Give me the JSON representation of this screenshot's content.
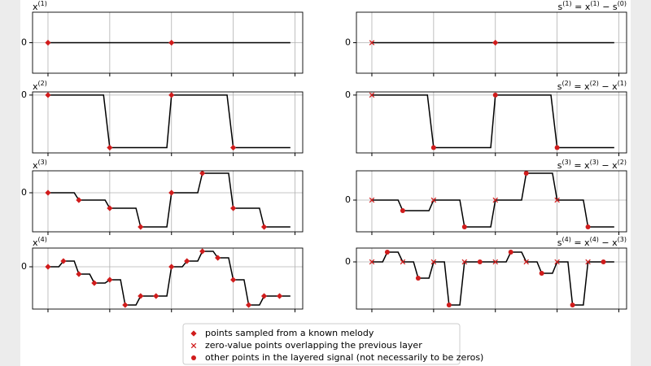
{
  "chart_data": [
    {
      "type": "line",
      "title": [
        {
          "text": "x",
          "sup": "(1)"
        }
      ],
      "xlim": [
        -1,
        16.5
      ],
      "ylim": [
        -1,
        1
      ],
      "xticks": [
        0,
        4,
        8,
        12,
        16
      ],
      "yticks": [
        0
      ],
      "grid": true,
      "series": [
        {
          "color": "#000000",
          "x": [
            0,
            15.7
          ],
          "values": [
            0,
            0
          ]
        },
        {
          "marker": "diamond",
          "color": "#d01c1c",
          "x": [
            0,
            8
          ],
          "values": [
            0,
            0
          ]
        }
      ]
    },
    {
      "type": "line",
      "title": [
        {
          "text": "s",
          "sup": "(1)"
        },
        {
          "text": " = x",
          "sup": "(1)"
        },
        {
          "text": " − s",
          "sup": "(0)"
        }
      ],
      "xlim": [
        -1,
        16.5
      ],
      "ylim": [
        -1,
        1
      ],
      "xticks": [
        0,
        4,
        8,
        12,
        16
      ],
      "yticks": [
        0
      ],
      "grid": true,
      "series": [
        {
          "color": "#000000",
          "x": [
            0,
            15.7
          ],
          "values": [
            0,
            0
          ]
        },
        {
          "marker": "x",
          "color": "#d01c1c",
          "x": [
            0
          ],
          "values": [
            0
          ]
        },
        {
          "marker": "diamond",
          "color": "#d01c1c",
          "x": [
            8
          ],
          "values": [
            0
          ]
        }
      ]
    },
    {
      "type": "line",
      "title": [
        {
          "text": "x",
          "sup": "(2)"
        }
      ],
      "xlim": [
        -1,
        16.5
      ],
      "ylim": [
        -1.1,
        0.06
      ],
      "xticks": [
        0,
        4,
        8,
        12,
        16
      ],
      "yticks": [
        0
      ],
      "grid": true,
      "series": [
        {
          "color": "#000000",
          "x": [
            0,
            3.6,
            4,
            7.7,
            8,
            11.6,
            12,
            15.7
          ],
          "values": [
            0,
            0,
            -1,
            -1,
            0,
            0,
            -1,
            -1
          ]
        },
        {
          "marker": "diamond",
          "color": "#d01c1c",
          "x": [
            0,
            4,
            8,
            12
          ],
          "values": [
            0,
            -1,
            0,
            -1
          ]
        }
      ]
    },
    {
      "type": "line",
      "title": [
        {
          "text": "s",
          "sup": "(2)"
        },
        {
          "text": " = x",
          "sup": "(2)"
        },
        {
          "text": " − x",
          "sup": "(1)"
        }
      ],
      "xlim": [
        -1,
        16.5
      ],
      "ylim": [
        -1.1,
        0.06
      ],
      "xticks": [
        0,
        4,
        8,
        12,
        16
      ],
      "yticks": [
        0
      ],
      "grid": true,
      "series": [
        {
          "color": "#000000",
          "x": [
            0,
            3.6,
            4,
            7.7,
            8,
            11.6,
            12,
            15.7
          ],
          "values": [
            0,
            0,
            -1,
            -1,
            0,
            0,
            -1,
            -1
          ]
        },
        {
          "marker": "x",
          "color": "#d01c1c",
          "x": [
            0
          ],
          "values": [
            0
          ]
        },
        {
          "marker": "dot",
          "color": "#d01c1c",
          "x": [
            4,
            8,
            12
          ],
          "values": [
            -1,
            0,
            -1
          ]
        }
      ]
    },
    {
      "type": "line",
      "title": [
        {
          "text": "x",
          "sup": "(3)"
        }
      ],
      "xlim": [
        -1,
        16.5
      ],
      "ylim": [
        -4.8,
        2.7
      ],
      "xticks": [
        0,
        4,
        8,
        12,
        16
      ],
      "yticks": [
        0
      ],
      "grid": true,
      "series": [
        {
          "color": "#000000",
          "x": [
            0,
            1.7,
            2,
            3.7,
            4,
            5.7,
            6,
            7.7,
            8,
            9.7,
            10,
            11.7,
            12,
            13.7,
            14,
            15.7
          ],
          "values": [
            0,
            0,
            -0.9,
            -0.9,
            -1.9,
            -1.9,
            -4.2,
            -4.2,
            0,
            0,
            2.4,
            2.4,
            -1.9,
            -1.9,
            -4.2,
            -4.2
          ]
        },
        {
          "marker": "diamond",
          "color": "#d01c1c",
          "x": [
            0,
            2,
            4,
            6,
            8,
            10,
            12,
            14
          ],
          "values": [
            0,
            -0.9,
            -1.9,
            -4.2,
            0,
            2.4,
            -1.9,
            -4.2
          ]
        }
      ]
    },
    {
      "type": "line",
      "title": [
        {
          "text": "s",
          "sup": "(3)"
        },
        {
          "text": " = x",
          "sup": "(3)"
        },
        {
          "text": " − x",
          "sup": "(2)"
        }
      ],
      "xlim": [
        -1,
        16.5
      ],
      "ylim": [
        -3.9,
        3.6
      ],
      "xticks": [
        0,
        4,
        8,
        12,
        16
      ],
      "yticks": [
        0
      ],
      "grid": true,
      "series": [
        {
          "color": "#000000",
          "x": [
            0,
            1.7,
            2,
            3.7,
            4,
            5.7,
            6,
            7.7,
            8,
            9.7,
            10,
            11.7,
            12,
            13.7,
            14,
            15.7
          ],
          "values": [
            0,
            0,
            -1.3,
            -1.3,
            0,
            0,
            -3.3,
            -3.3,
            0,
            0,
            3.3,
            3.3,
            0,
            0,
            -3.3,
            -3.3
          ]
        },
        {
          "marker": "x",
          "color": "#d01c1c",
          "x": [
            0,
            4,
            8,
            12
          ],
          "values": [
            0,
            0,
            0,
            0
          ]
        },
        {
          "marker": "dot",
          "color": "#d01c1c",
          "x": [
            2,
            6,
            10,
            14
          ],
          "values": [
            -1.3,
            -3.3,
            3.3,
            -3.3
          ]
        }
      ]
    },
    {
      "type": "line",
      "title": [
        {
          "text": "x",
          "sup": "(4)"
        }
      ],
      "xlim": [
        -1,
        16.5
      ],
      "ylim": [
        -5.2,
        2.3
      ],
      "xticks": [
        0,
        4,
        8,
        12,
        16
      ],
      "yticks": [
        0
      ],
      "grid": true,
      "series": [
        {
          "color": "#000000",
          "x": [
            0,
            0.7,
            1,
            1.7,
            2,
            2.7,
            3,
            3.7,
            4,
            4.7,
            5,
            5.7,
            6,
            6.7,
            7,
            7.7,
            8,
            8.7,
            9,
            9.7,
            10,
            10.7,
            11,
            11.7,
            12,
            12.7,
            13,
            13.7,
            14,
            14.7,
            15,
            15.7
          ],
          "values": [
            0,
            0,
            0.7,
            0.7,
            -0.9,
            -0.9,
            -2,
            -2,
            -1.6,
            -1.6,
            -4.7,
            -4.7,
            -3.6,
            -3.6,
            -3.6,
            -3.6,
            0,
            0,
            0.7,
            0.7,
            1.9,
            1.9,
            1.1,
            1.1,
            -1.6,
            -1.6,
            -4.7,
            -4.7,
            -3.6,
            -3.6,
            -3.6,
            -3.6
          ]
        },
        {
          "marker": "diamond",
          "color": "#d01c1c",
          "x": [
            0,
            1,
            2,
            3,
            4,
            5,
            6,
            7,
            8,
            9,
            10,
            11,
            12,
            13,
            14,
            15
          ],
          "values": [
            0,
            0.7,
            -0.9,
            -2,
            -1.6,
            -4.7,
            -3.6,
            -3.6,
            0,
            0.7,
            1.9,
            1.1,
            -1.6,
            -4.7,
            -3.6,
            -3.6
          ]
        }
      ]
    },
    {
      "type": "line",
      "title": [
        {
          "text": "s",
          "sup": "(4)"
        },
        {
          "text": " = x",
          "sup": "(4)"
        },
        {
          "text": " − x",
          "sup": "(3)"
        }
      ],
      "xlim": [
        -1,
        16.5
      ],
      "ylim": [
        -5.8,
        1.7
      ],
      "xticks": [
        0,
        4,
        8,
        12,
        16
      ],
      "yticks": [
        0
      ],
      "grid": true,
      "series": [
        {
          "color": "#000000",
          "x": [
            0,
            0.7,
            1,
            1.7,
            2,
            2.7,
            3,
            3.7,
            4,
            4.7,
            5,
            5.7,
            6,
            6.7,
            7,
            7.7,
            8,
            8.7,
            9,
            9.7,
            10,
            10.7,
            11,
            11.7,
            12,
            12.7,
            13,
            13.7,
            14,
            14.7,
            15,
            15.7
          ],
          "values": [
            0,
            0,
            1.2,
            1.2,
            0,
            0,
            -2,
            -2,
            0,
            0,
            -5.3,
            -5.3,
            0,
            0,
            0,
            0,
            0,
            0,
            1.2,
            1.2,
            0,
            0,
            -1.4,
            -1.4,
            0,
            0,
            -5.3,
            -5.3,
            0,
            0,
            0,
            0
          ]
        },
        {
          "marker": "x",
          "color": "#d01c1c",
          "x": [
            0,
            2,
            4,
            6,
            8,
            10,
            12,
            14
          ],
          "values": [
            0,
            0,
            0,
            0,
            0,
            0,
            0,
            0
          ]
        },
        {
          "marker": "dot",
          "color": "#d01c1c",
          "x": [
            1,
            3,
            5,
            7,
            9,
            11,
            13,
            15
          ],
          "values": [
            1.2,
            -2,
            -5.3,
            0,
            1.2,
            -1.4,
            -5.3,
            0
          ]
        }
      ]
    }
  ],
  "legend": [
    {
      "marker": "diamond",
      "color": "#d01c1c",
      "label": "points sampled from a known melody"
    },
    {
      "marker": "x",
      "color": "#d01c1c",
      "label": "zero-value points overlapping the previous layer"
    },
    {
      "marker": "dot",
      "color": "#d01c1c",
      "label": "other points in the layered signal (not necessarily to be zeros)"
    }
  ]
}
